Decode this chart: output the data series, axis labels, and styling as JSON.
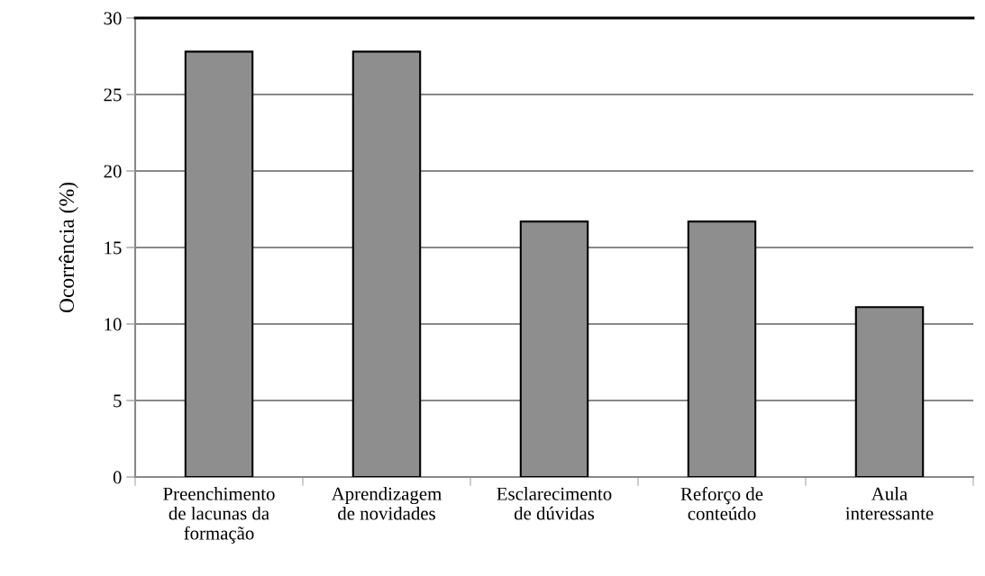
{
  "chart_data": {
    "type": "bar",
    "ylabel": "Ocorrência (%)",
    "categories": [
      "Preenchimento\nde lacunas da\nformação",
      "Aprendizagem\nde novidades",
      "Esclarecimento\nde dúvidas",
      "Reforço de\nconteúdo",
      "Aula\ninteressante"
    ],
    "values": [
      27.8,
      27.8,
      16.7,
      16.7,
      11.1
    ],
    "color": "#8e8e8e",
    "ylim": [
      0,
      30
    ],
    "yticks": [
      0,
      5,
      10,
      15,
      20,
      25,
      30
    ],
    "grid": "y"
  }
}
